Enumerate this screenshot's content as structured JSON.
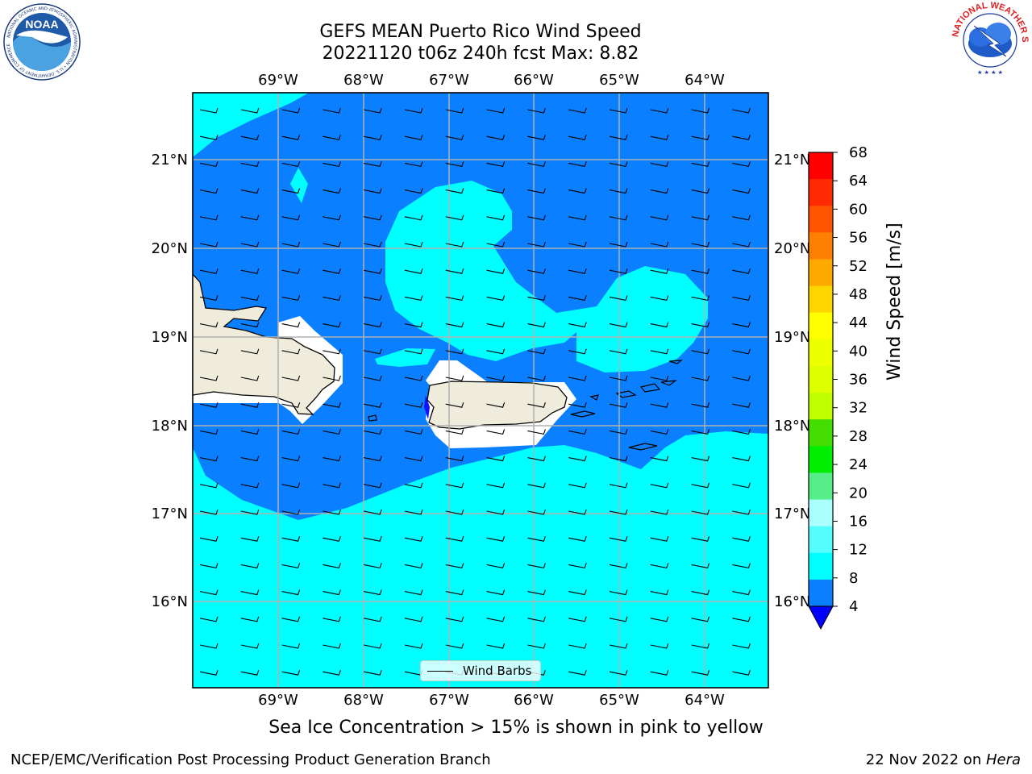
{
  "header": {
    "title_line1": "GEFS MEAN Puerto Rico Wind Speed",
    "title_line2": "20221120 t06z 240h fcst   Max: 8.82"
  },
  "caption": "Sea Ice Concentration > 15% is shown in pink to yellow",
  "footer": {
    "left": "NCEP/EMC/Verification Post Processing Product Generation Branch",
    "right_date": "22 Nov 2022 on ",
    "right_machine": "Hera"
  },
  "logos": {
    "left": {
      "text": "NOAA",
      "ring_text": "NATIONAL OCEANIC AND ATMOSPHERIC ADMINISTRATION • U.S. DEPARTMENT OF COMMERCE"
    },
    "right": {
      "ring_text": "NATIONAL WEATHER SERVICE"
    }
  },
  "map": {
    "lon_labels": [
      "69°W",
      "68°W",
      "67°W",
      "66°W",
      "65°W",
      "64°W"
    ],
    "lat_labels": [
      "21°N",
      "20°N",
      "19°N",
      "18°N",
      "17°N",
      "16°N"
    ],
    "colors": {
      "land": "#efecdc",
      "ocean_4_8": "#0a7fff",
      "ocean_8_12": "#00ffff",
      "grid": "#b0b0b0"
    },
    "legend_label": "Wind Barbs"
  },
  "colorbar": {
    "title": "Wind Speed [m/s]",
    "ticks": [
      "68",
      "64",
      "60",
      "56",
      "52",
      "48",
      "44",
      "40",
      "36",
      "32",
      "28",
      "24",
      "20",
      "16",
      "12",
      "8",
      "4"
    ],
    "colors_top_to_bottom": [
      "#ff0000",
      "#ff2a00",
      "#ff5500",
      "#ff8000",
      "#ffaa00",
      "#ffd500",
      "#ffff00",
      "#eeff00",
      "#ddff00",
      "#c0ff00",
      "#44dd00",
      "#00ee00",
      "#55ee88",
      "#aaffff",
      "#55ffff",
      "#00ffff",
      "#0a7fff"
    ],
    "extend_color": "#0000ff"
  }
}
